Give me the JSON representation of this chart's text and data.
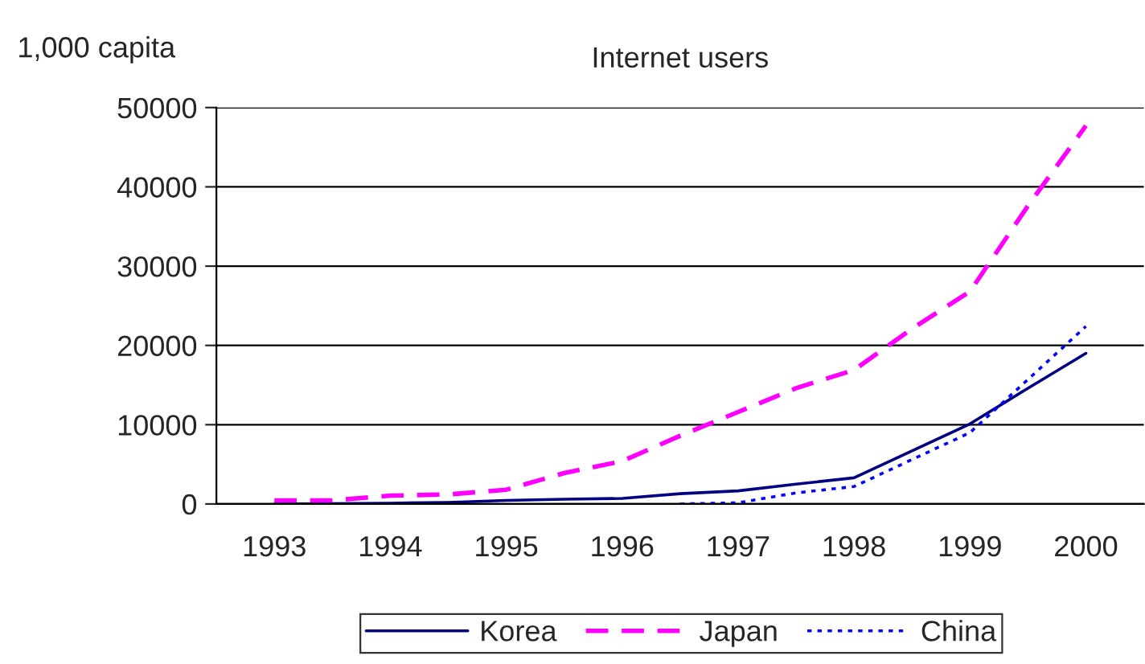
{
  "chart_data": {
    "type": "line",
    "title": "Internet users",
    "ylabel": "1,000 capita",
    "categories": [
      "1993",
      null,
      "1994",
      null,
      "1995",
      null,
      "1996",
      null,
      "1997",
      null,
      "1998",
      null,
      "1999",
      null,
      "2000"
    ],
    "series": [
      {
        "name": "Korea",
        "color": "#000080",
        "line_style": "solid",
        "values": [
          0,
          50,
          100,
          200,
          450,
          600,
          700,
          1300,
          1650,
          2500,
          3300,
          6700,
          10100,
          14600,
          19000
        ]
      },
      {
        "name": "Japan",
        "color": "#ff00ff",
        "line_style": "dashed",
        "values": [
          450,
          450,
          1050,
          1200,
          1800,
          3900,
          5400,
          8600,
          11600,
          14600,
          16900,
          22100,
          26800,
          37600,
          47700
        ]
      },
      {
        "name": "China",
        "color": "#0000ff",
        "line_style": "dotted",
        "values": [
          null,
          null,
          null,
          null,
          null,
          null,
          null,
          0,
          150,
          1400,
          2200,
          5600,
          9000,
          15700,
          22400
        ]
      }
    ],
    "ylim": [
      0,
      50000
    ],
    "yticks": [
      0,
      10000,
      20000,
      30000,
      40000,
      50000
    ],
    "grid": "y",
    "legend": "bottom"
  }
}
